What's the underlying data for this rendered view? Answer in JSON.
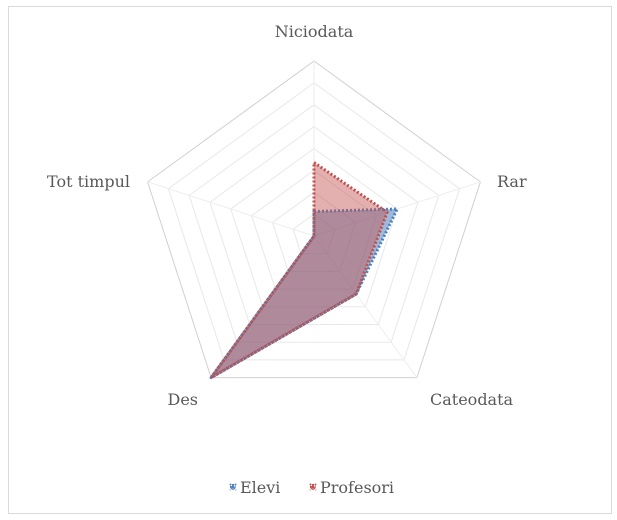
{
  "chart_data": {
    "type": "radar",
    "axes": [
      "Niciodata",
      "Rar",
      "Cateodata",
      "Des",
      "Tot timpul"
    ],
    "range": [
      0,
      1
    ],
    "gridlines": true,
    "legend_position": "bottom",
    "series": [
      {
        "name": "Elevi",
        "values": [
          0.14,
          0.5,
          0.41,
          1.0,
          0.0
        ],
        "color": "#4f81bd"
      },
      {
        "name": "Profesori",
        "values": [
          0.42,
          0.44,
          0.41,
          1.0,
          0.0
        ],
        "color": "#c0504d"
      }
    ]
  }
}
